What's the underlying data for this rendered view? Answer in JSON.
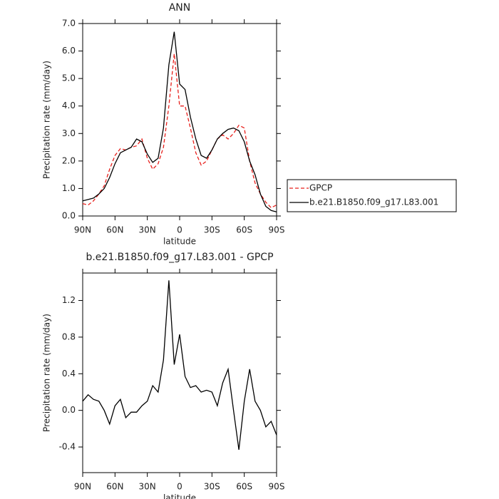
{
  "chart_data": [
    {
      "type": "line",
      "title": "ANN",
      "xlabel": "latitude",
      "ylabel": "Precipitation rate (mm/day)",
      "x": [
        90,
        85,
        80,
        75,
        70,
        65,
        60,
        55,
        50,
        45,
        40,
        35,
        30,
        25,
        20,
        15,
        10,
        5,
        0,
        -5,
        -10,
        -15,
        -20,
        -25,
        -30,
        -35,
        -40,
        -45,
        -50,
        -55,
        -60,
        -65,
        -70,
        -75,
        -80,
        -85,
        -90
      ],
      "series": [
        {
          "name": "GPCP",
          "color": "#e8201c",
          "linestyle": "dashed",
          "values": [
            0.45,
            0.4,
            0.55,
            0.8,
            1.1,
            1.7,
            2.2,
            2.45,
            2.4,
            2.5,
            2.55,
            2.8,
            2.1,
            1.7,
            1.9,
            2.5,
            4.0,
            5.9,
            4.0,
            4.0,
            3.2,
            2.3,
            1.85,
            2.0,
            2.4,
            2.8,
            2.95,
            2.8,
            3.0,
            3.3,
            3.2,
            2.0,
            1.2,
            0.8,
            0.5,
            0.3,
            0.4
          ]
        },
        {
          "name": "b.e21.B1850.f09_g17.L83.001",
          "color": "#000000",
          "linestyle": "solid",
          "values": [
            0.55,
            0.6,
            0.65,
            0.8,
            1.0,
            1.4,
            1.9,
            2.3,
            2.4,
            2.5,
            2.8,
            2.7,
            2.25,
            1.95,
            2.1,
            3.2,
            5.5,
            6.7,
            4.8,
            4.6,
            3.6,
            2.8,
            2.2,
            2.1,
            2.4,
            2.8,
            3.0,
            3.15,
            3.2,
            3.1,
            2.7,
            2.0,
            1.5,
            0.8,
            0.35,
            0.2,
            0.15
          ]
        }
      ],
      "xlim": [
        90,
        -90
      ],
      "xticks": [
        {
          "value": 90,
          "label": "90N"
        },
        {
          "value": 60,
          "label": "60N"
        },
        {
          "value": 30,
          "label": "30N"
        },
        0,
        {
          "value": -30,
          "label": "30S"
        },
        {
          "value": -60,
          "label": "60S"
        },
        {
          "value": -90,
          "label": "90S"
        }
      ],
      "ylim": [
        0,
        7
      ],
      "yticks": [
        {
          "value": 0,
          "label": "0.0"
        },
        {
          "value": 1,
          "label": "1.0"
        },
        {
          "value": 2,
          "label": "2.0"
        },
        {
          "value": 3,
          "label": "3.0"
        },
        {
          "value": 4,
          "label": "4.0"
        },
        {
          "value": 5,
          "label": "5.0"
        },
        {
          "value": 6,
          "label": "6.0"
        },
        {
          "value": 7,
          "label": "7.0"
        }
      ],
      "legend": "right"
    },
    {
      "type": "line",
      "title": "b.e21.B1850.f09_g17.L83.001 - GPCP",
      "xlabel": "latitude",
      "ylabel": "Precipitation rate (mm/day)",
      "x": [
        90,
        85,
        80,
        75,
        70,
        65,
        60,
        55,
        50,
        45,
        40,
        35,
        30,
        25,
        20,
        15,
        10,
        5,
        0,
        -5,
        -10,
        -15,
        -20,
        -25,
        -30,
        -35,
        -40,
        -45,
        -50,
        -55,
        -60,
        -65,
        -70,
        -75,
        -80,
        -85,
        -90
      ],
      "values": [
        0.1,
        0.17,
        0.12,
        0.1,
        0.0,
        -0.15,
        0.05,
        0.12,
        -0.08,
        -0.02,
        -0.02,
        0.05,
        0.1,
        0.27,
        0.2,
        0.55,
        1.42,
        0.5,
        0.83,
        0.37,
        0.25,
        0.27,
        0.2,
        0.22,
        0.2,
        0.05,
        0.3,
        0.45,
        0.0,
        -0.43,
        0.1,
        0.45,
        0.1,
        0.0,
        -0.18,
        -0.12,
        -0.27
      ],
      "color": "#000000",
      "xlim": [
        90,
        -90
      ],
      "xticks": [
        {
          "value": 90,
          "label": "90N"
        },
        {
          "value": 60,
          "label": "60N"
        },
        {
          "value": 30,
          "label": "30N"
        },
        0,
        {
          "value": -30,
          "label": "30S"
        },
        {
          "value": -60,
          "label": "60S"
        },
        {
          "value": -90,
          "label": "90S"
        }
      ],
      "ylim": [
        -0.68,
        1.5
      ],
      "yticks": [
        -0.4,
        {
          "value": 0,
          "label": "0.0"
        },
        0.4,
        0.8,
        1.2
      ]
    }
  ]
}
